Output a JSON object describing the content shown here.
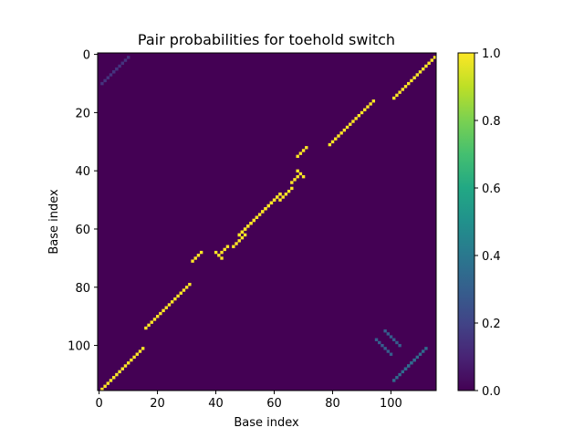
{
  "chart_data": {
    "type": "heatmap",
    "title": "Pair probabilities for toehold switch",
    "xlabel": "Base index",
    "ylabel": "Base index",
    "n": 116,
    "xlim": [
      0,
      115
    ],
    "ylim": [
      115,
      0
    ],
    "x_ticks": [
      0,
      20,
      40,
      60,
      80,
      100
    ],
    "y_ticks": [
      0,
      20,
      40,
      60,
      80,
      100
    ],
    "colorbar": {
      "min": 0.0,
      "max": 1.0,
      "ticks": [
        "0.0",
        "0.2",
        "0.4",
        "0.6",
        "0.8",
        "1.0"
      ],
      "colormap": "viridis"
    },
    "background_value": 0.0,
    "paired_segments": [
      {
        "i_start": 1,
        "i_end": 15,
        "j_start": 115,
        "j_end": 101,
        "value": 1.0
      },
      {
        "i_start": 16,
        "i_end": 31,
        "j_start": 94,
        "j_end": 79,
        "value": 1.0
      },
      {
        "i_start": 32,
        "i_end": 35,
        "j_start": 71,
        "j_end": 68,
        "value": 1.0
      },
      {
        "i_start": 40,
        "i_end": 40,
        "j_start": 68,
        "j_end": 68,
        "value": 1.0
      },
      {
        "i_start": 42,
        "i_end": 42,
        "j_start": 70,
        "j_end": 70,
        "value": 1.0
      },
      {
        "i_start": 48,
        "i_end": 62,
        "j_start": 62,
        "j_end": 48,
        "value": 1.0
      },
      {
        "i_start": 41,
        "i_end": 44,
        "j_start": 69,
        "j_end": 66,
        "value": 1.0
      },
      {
        "i_start": 46,
        "i_end": 50,
        "j_start": 66,
        "j_end": 62,
        "value": 1.0
      }
    ],
    "weak_segments": [
      {
        "i_start": 1,
        "i_end": 6,
        "j_start": 10,
        "j_end": 5,
        "value": 0.15
      },
      {
        "i_start": 101,
        "i_end": 108,
        "j_start": 112,
        "j_end": 103,
        "value": 0.35
      },
      {
        "i_start": 95,
        "i_end": 100,
        "j_start": 98,
        "j_end": 103,
        "value": 0.3
      },
      {
        "i_start": 4,
        "i_end": 8,
        "j_start": 112,
        "j_end": 108,
        "value": 0.2
      }
    ]
  }
}
